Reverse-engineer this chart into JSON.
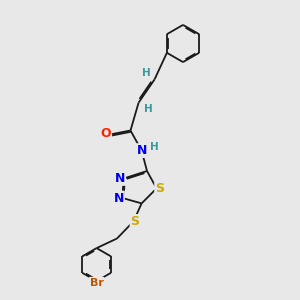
{
  "bg": "#e8e8e8",
  "bc": "#1a1a1a",
  "lw": 1.3,
  "dbo": 0.045,
  "atom_colors": {
    "N": "#0000ee",
    "S": "#ccaa00",
    "O": "#ff2200",
    "Br": "#bb5500",
    "H": "#3a9a9a",
    "C": "#1a1a1a"
  },
  "figsize": [
    3.0,
    3.0
  ],
  "dpi": 100,
  "xlim": [
    0,
    10
  ],
  "ylim": [
    0,
    10
  ]
}
